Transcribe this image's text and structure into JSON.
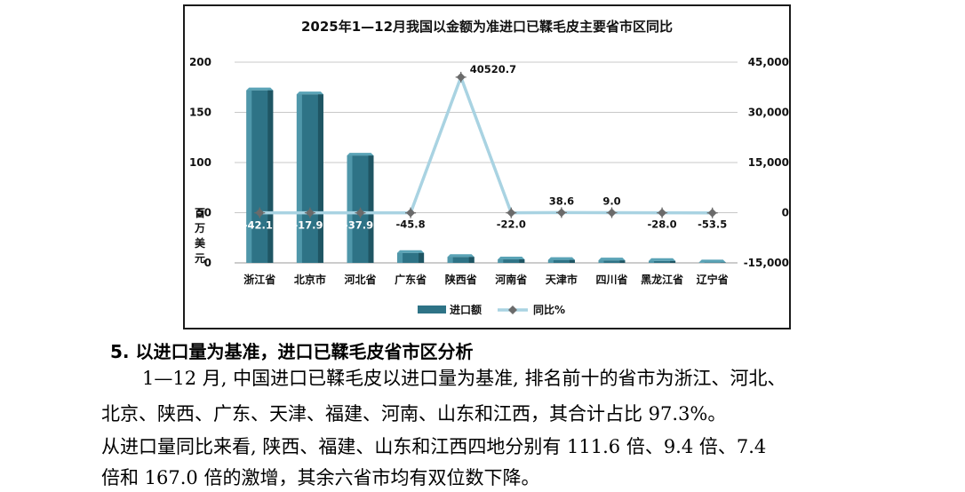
{
  "section": {
    "heading": "5. 以进口量为基准，进口已鞣毛皮省市区分析",
    "paragraph_lines": [
      "1—12 月, 中国进口已鞣毛皮以进口量为基准, 排名前十的省市为浙江、河北、",
      "北京、陕西、广东、天津、福建、河南、山东和江西，其合计占比  97.3%。",
      "从进口量同比来看, 陕西、福建、山东和江西四地分别有 111.6 倍、9.4 倍、7.4",
      "倍和 167.0 倍的激增，其余六省市均有双位数下降。"
    ]
  },
  "chart_data": {
    "type": "bar",
    "title": "2025年1—12月我国以金额为准进口已鞣毛皮主要省市区同比",
    "categories": [
      "浙江省",
      "北京市",
      "河北省",
      "广东省",
      "陕西省",
      "河南省",
      "天津市",
      "四川省",
      "黑龙江省",
      "辽宁省"
    ],
    "ylabel": "百万美元",
    "ylim": [
      0,
      200
    ],
    "yticks": [
      "0",
      "50",
      "100",
      "150",
      "200"
    ],
    "y2lim": [
      -15000,
      45000
    ],
    "y2ticks": [
      "-15,000",
      "0",
      "15,000",
      "30,000",
      "45,000"
    ],
    "series": [
      {
        "name": "进口额",
        "kind": "bar",
        "axis": "left",
        "color": "#2e7386",
        "values": [
          172,
          168,
          107,
          10,
          6,
          3.5,
          3,
          2.5,
          2,
          0.5
        ]
      },
      {
        "name": "同比%",
        "kind": "line",
        "axis": "right",
        "color": "#a9d3e2",
        "values": [
          -42.1,
          -17.9,
          -37.9,
          -45.8,
          40520.7,
          -22.0,
          38.6,
          9.0,
          -28.0,
          -53.5
        ],
        "labels": [
          "-42.1",
          "-17.9",
          "-37.9",
          "-45.8",
          "40520.7",
          "-22.0",
          "38.6",
          "9.0",
          "-28.0",
          "-53.5"
        ]
      }
    ],
    "grid": true,
    "legend_position": "bottom"
  }
}
